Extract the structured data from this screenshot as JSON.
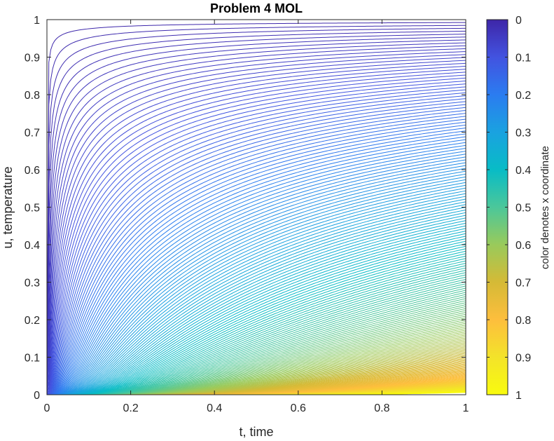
{
  "chart_data": {
    "type": "line",
    "title": "Problem 4 MOL",
    "xlabel": "t, time",
    "ylabel": "u, temperature",
    "xlim": [
      0,
      1
    ],
    "ylim": [
      0,
      1
    ],
    "xticks": [
      "0",
      "0.2",
      "0.4",
      "0.6",
      "0.8",
      "1"
    ],
    "yticks": [
      "0",
      "0.1",
      "0.2",
      "0.3",
      "0.4",
      "0.5",
      "0.6",
      "0.7",
      "0.8",
      "0.9",
      "1"
    ],
    "grid": false,
    "series_description": "family of temperature curves u(t), one per spatial node x from 0 to 1; curves for smaller x rise earlier",
    "node_count": 201,
    "x_range": [
      0,
      1
    ],
    "colorbar": {
      "label": "color denotes x coordinate",
      "ticks": [
        "0",
        "0.1",
        "0.2",
        "0.3",
        "0.4",
        "0.5",
        "0.6",
        "0.7",
        "0.8",
        "0.9",
        "1"
      ],
      "range": [
        0,
        1
      ],
      "direction": "reversed",
      "colormap": "parula",
      "colors": [
        "#3e26a8",
        "#4253e0",
        "#2b7cf0",
        "#1aa2e0",
        "#08bcc6",
        "#4bc79a",
        "#99ca5b",
        "#d5ba36",
        "#fdbe3d",
        "#f3e32a",
        "#f9fb0e"
      ]
    }
  }
}
